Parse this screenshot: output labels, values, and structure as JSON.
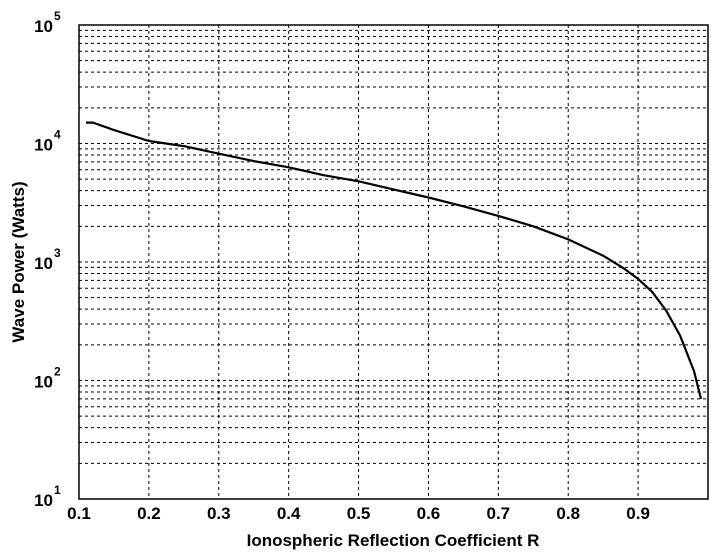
{
  "chart_data": {
    "type": "line",
    "title": "",
    "xlabel": "Ionospheric Reflection Coefficient R",
    "ylabel": "Wave Power (Watts)",
    "xlim": [
      0.1,
      1.0
    ],
    "ylim": [
      10,
      100000
    ],
    "yscale": "log",
    "grid": true,
    "grid_style": "dashed",
    "line_color": "#000000",
    "x_ticks": [
      "0.1",
      "0.2",
      "0.3",
      "0.4",
      "0.5",
      "0.6",
      "0.7",
      "0.8",
      "0.9"
    ],
    "y_ticks": [
      {
        "base": "10",
        "exp": "1"
      },
      {
        "base": "10",
        "exp": "2"
      },
      {
        "base": "10",
        "exp": "3"
      },
      {
        "base": "10",
        "exp": "4"
      },
      {
        "base": "10",
        "exp": "5"
      }
    ],
    "series": [
      {
        "x": [
          0.11,
          0.12,
          0.15,
          0.2,
          0.25,
          0.3,
          0.35,
          0.4,
          0.45,
          0.5,
          0.55,
          0.6,
          0.65,
          0.7,
          0.75,
          0.8,
          0.85,
          0.88,
          0.9,
          0.92,
          0.94,
          0.96,
          0.97,
          0.98,
          0.99
        ],
        "y": [
          15000,
          15000,
          13000,
          10500,
          9500,
          8200,
          7100,
          6300,
          5400,
          4800,
          4100,
          3500,
          2950,
          2450,
          2000,
          1550,
          1130,
          880,
          720,
          560,
          390,
          240,
          170,
          120,
          70
        ]
      }
    ]
  }
}
